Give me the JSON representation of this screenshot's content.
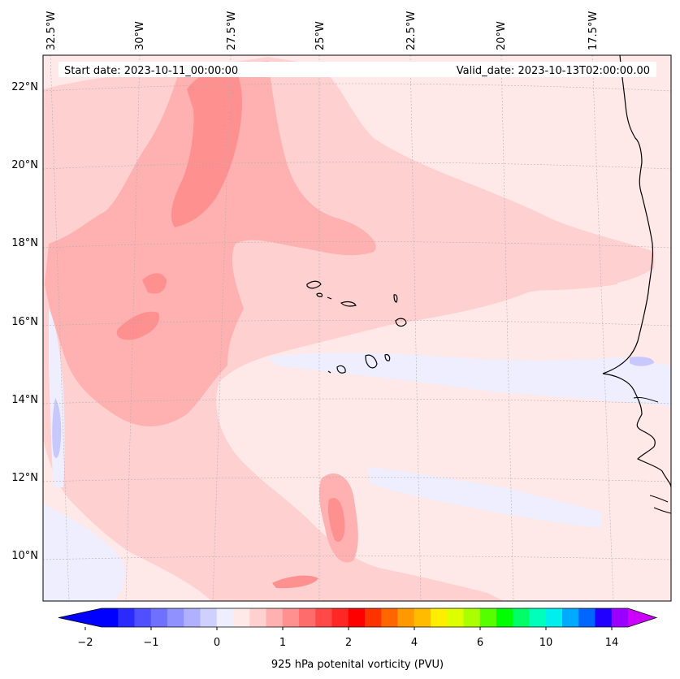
{
  "header": {
    "start_date": "Start date: 2023-10-11_00:00:00",
    "valid_date": "Valid_date: 2023-10-13T02:00:00.00"
  },
  "longitude_labels": [
    "32.5°W",
    "30°W",
    "27.5°W",
    "25°W",
    "22.5°W",
    "20°W",
    "17.5°W"
  ],
  "latitude_labels": [
    "22°N",
    "20°N",
    "18°N",
    "16°N",
    "14°N",
    "12°N",
    "10°N"
  ],
  "colorbar": {
    "label": "925 hPa potenital vorticity (PVU)",
    "tick_labels": [
      "−2",
      "−1",
      "0",
      "1",
      "2",
      "4",
      "6",
      "10",
      "14"
    ],
    "colors": [
      "#0000ff",
      "#2a2aff",
      "#5050ff",
      "#7070ff",
      "#9090ff",
      "#b0b0ff",
      "#d0d0ff",
      "#eeeeff",
      "#ffe8e8",
      "#ffd0d0",
      "#ffb0b0",
      "#ff9090",
      "#ff6c6c",
      "#ff4848",
      "#ff2626",
      "#ff0000",
      "#ff3300",
      "#ff6600",
      "#ff9900",
      "#ffbb00",
      "#ffee00",
      "#ddff00",
      "#aaff00",
      "#55ff00",
      "#00ff00",
      "#00ff66",
      "#00ffbb",
      "#00eeee",
      "#00aaff",
      "#0066ff",
      "#2200ff",
      "#9900ff"
    ],
    "extend_low_color": "#0000ff",
    "extend_high_color": "#cc00ff"
  },
  "colors": {
    "background_field": "#ffe8e8",
    "light_pink": "#ffd0d0",
    "medium_pink": "#ffb0b0",
    "strong_pink": "#ff9090",
    "light_blue": "#eeeeff",
    "blue": "#c8c8ff",
    "coastline": "#000000"
  }
}
